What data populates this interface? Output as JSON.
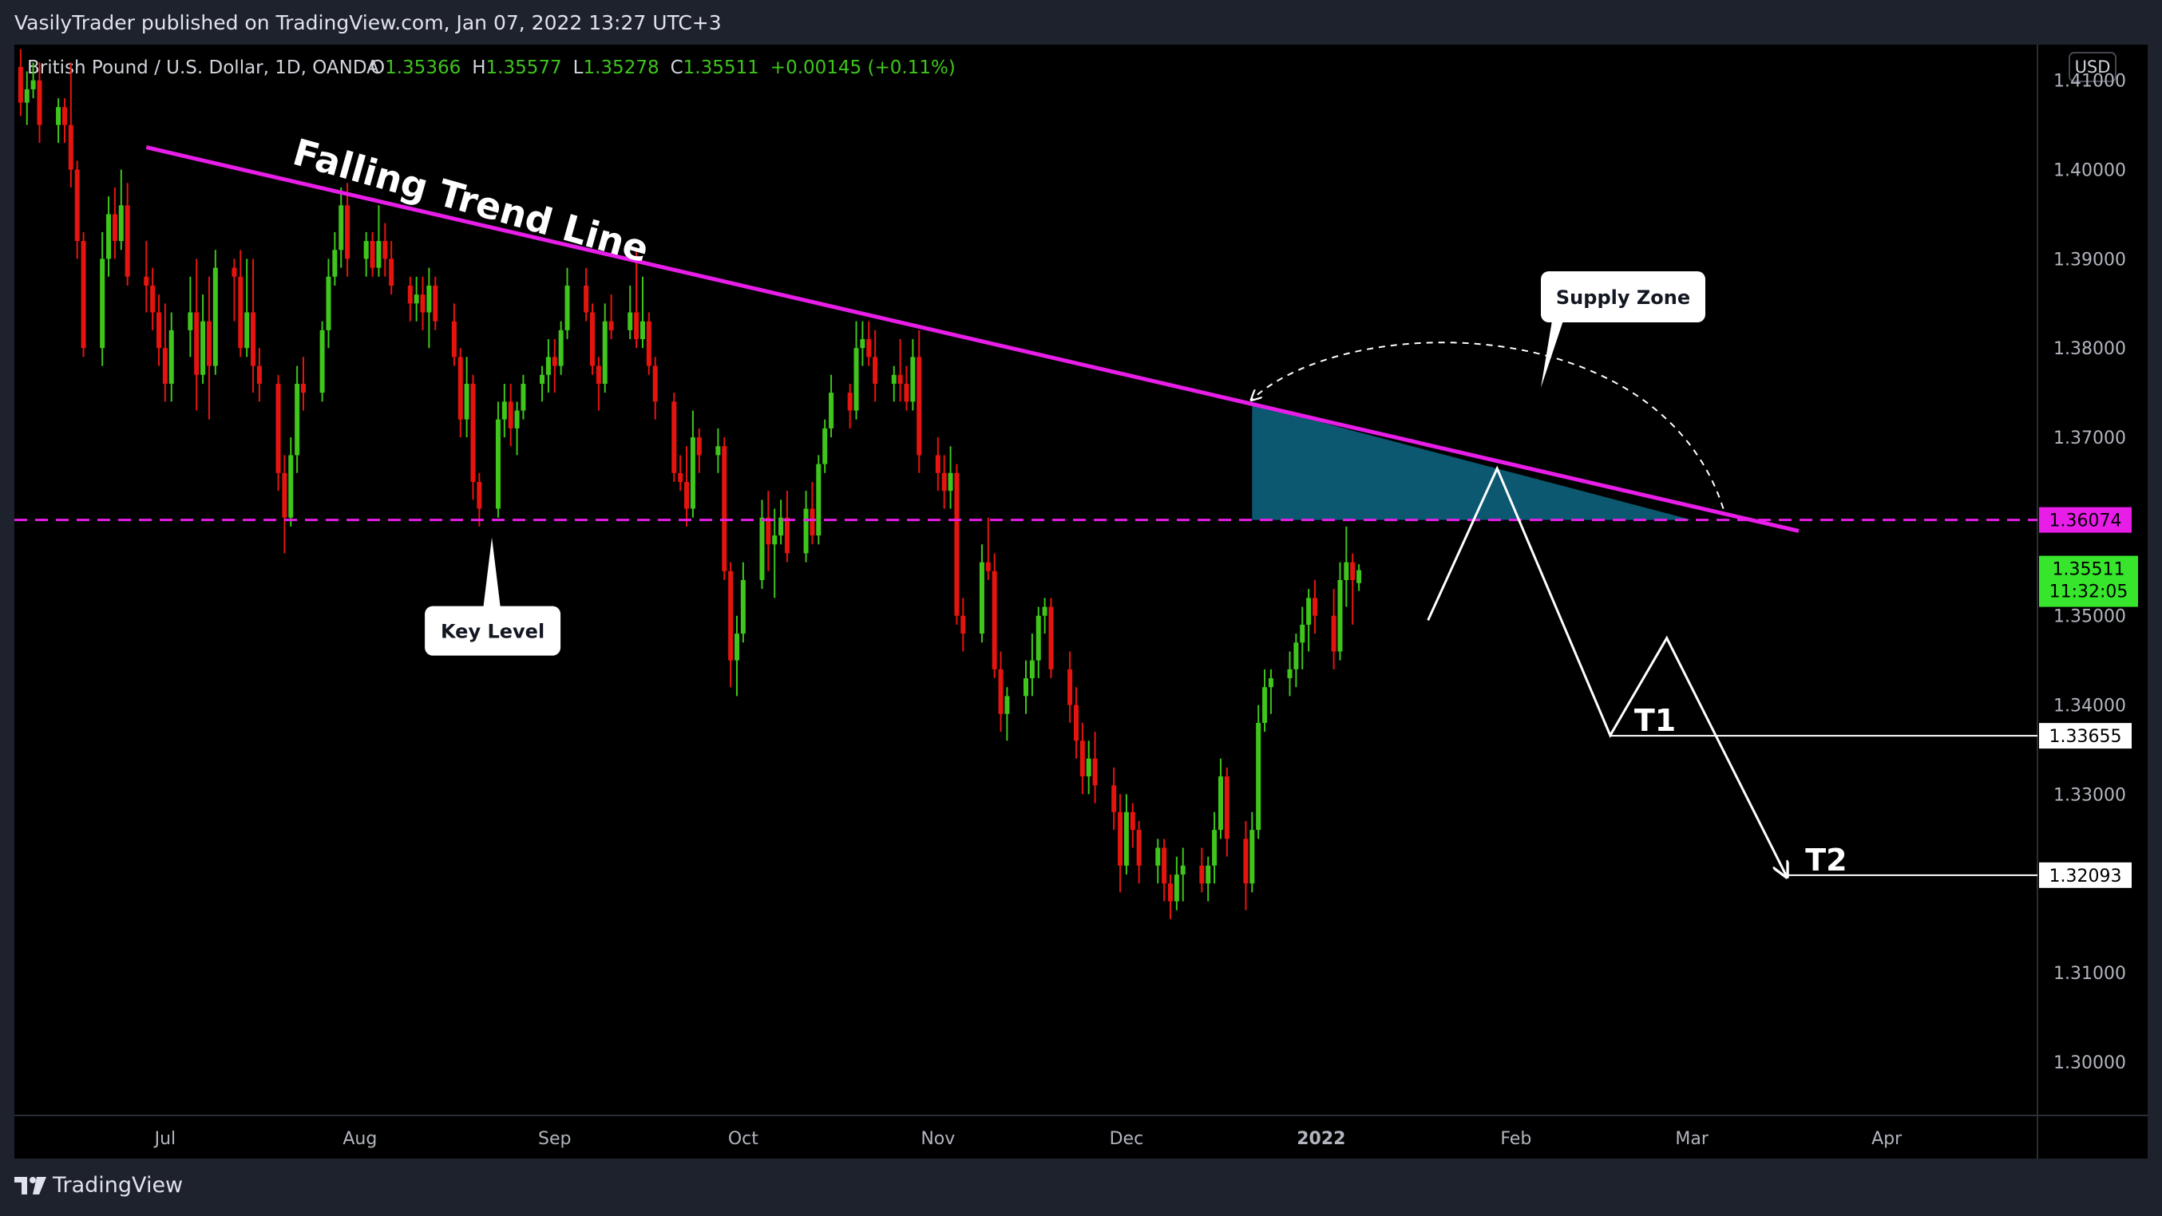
{
  "header": {
    "publisher_text": "VasilyTrader published on TradingView.com, Jan 07, 2022 13:27 UTC+3"
  },
  "legend": {
    "symbol": "British Pound / U.S. Dollar, 1D, OANDA",
    "open_label": "O",
    "open": "1.35366",
    "high_label": "H",
    "high": "1.35577",
    "low_label": "L",
    "low": "1.35278",
    "close_label": "C",
    "close": "1.35511",
    "change": "+0.00145 (+0.11%)"
  },
  "currency_label": "USD",
  "branding": {
    "logo_text": "TradingView"
  },
  "colors": {
    "up": "#3fc51c",
    "down": "#e6140f",
    "trend": "#e81ee8",
    "zone": "#0c5870",
    "price_tag": "#37e62c"
  },
  "chart_data": {
    "type": "candlestick",
    "title": "",
    "ylim": [
      1.294,
      1.414
    ],
    "y_ticks": [
      "1.41000",
      "1.40000",
      "1.39000",
      "1.38000",
      "1.37000",
      "1.35000",
      "1.34000",
      "1.33000",
      "1.31000",
      "1.30000"
    ],
    "x_ticks": [
      "Jul",
      "Aug",
      "Sep",
      "Oct",
      "Nov",
      "Dec",
      "2022",
      "Feb",
      "Mar",
      "Apr"
    ],
    "x_tick_dates": [
      "2021-07-01",
      "2021-08-01",
      "2021-09-01",
      "2021-10-01",
      "2021-11-01",
      "2021-12-01",
      "2022-01-01",
      "2022-02-01",
      "2022-03-01",
      "2022-04-01"
    ],
    "xlim": [
      "2021-06-07",
      "2022-04-25"
    ],
    "price_tags": {
      "key_level": "1.36074",
      "last_price": "1.35511",
      "countdown": "11:32:05",
      "t1": "1.33655",
      "t2": "1.32093"
    },
    "key_level_value": 1.36074,
    "last_price_value": 1.35511,
    "t1_value": 1.33655,
    "t2_value": 1.32093,
    "trend_line": {
      "from": [
        "2021-06-28",
        1.4025
      ],
      "to": [
        "2022-03-18",
        1.3595
      ]
    },
    "supply_zone": {
      "from_date": "2021-12-21",
      "to_date": "2022-03-01",
      "bottom": 1.36074
    },
    "projection_path": [
      [
        "2022-01-18",
        1.3495
      ],
      [
        "2022-01-29",
        1.3665
      ],
      [
        "2022-02-16",
        1.3366
      ],
      [
        "2022-02-25",
        1.3475
      ],
      [
        "2022-03-16",
        1.3209
      ]
    ],
    "annotations": {
      "trend_label": "Falling Trend Line",
      "supply_zone_label": "Supply Zone",
      "key_level_label": "Key Level",
      "t1_label": "T1",
      "t2_label": "T2"
    },
    "candles_ohlc_note": "date, open, high, low, close",
    "candles": [
      [
        "2021-06-08",
        1.4115,
        1.4135,
        1.406,
        1.4075
      ],
      [
        "2021-06-09",
        1.4075,
        1.411,
        1.405,
        1.409
      ],
      [
        "2021-06-10",
        1.409,
        1.412,
        1.408,
        1.41
      ],
      [
        "2021-06-11",
        1.41,
        1.412,
        1.403,
        1.405
      ],
      [
        "2021-06-14",
        1.405,
        1.408,
        1.403,
        1.407
      ],
      [
        "2021-06-15",
        1.407,
        1.408,
        1.403,
        1.405
      ],
      [
        "2021-06-16",
        1.405,
        1.412,
        1.398,
        1.4
      ],
      [
        "2021-06-17",
        1.4,
        1.401,
        1.39,
        1.392
      ],
      [
        "2021-06-18",
        1.392,
        1.393,
        1.379,
        1.38
      ],
      [
        "2021-06-21",
        1.38,
        1.393,
        1.378,
        1.39
      ],
      [
        "2021-06-22",
        1.39,
        1.397,
        1.388,
        1.395
      ],
      [
        "2021-06-23",
        1.395,
        1.398,
        1.39,
        1.392
      ],
      [
        "2021-06-24",
        1.392,
        1.4,
        1.391,
        1.396
      ],
      [
        "2021-06-25",
        1.396,
        1.3985,
        1.387,
        1.388
      ],
      [
        "2021-06-28",
        1.388,
        1.392,
        1.384,
        1.387
      ],
      [
        "2021-06-29",
        1.387,
        1.389,
        1.382,
        1.384
      ],
      [
        "2021-06-30",
        1.384,
        1.386,
        1.378,
        1.38
      ],
      [
        "2021-07-01",
        1.38,
        1.385,
        1.374,
        1.376
      ],
      [
        "2021-07-02",
        1.376,
        1.384,
        1.374,
        1.382
      ],
      [
        "2021-07-05",
        1.382,
        1.388,
        1.379,
        1.384
      ],
      [
        "2021-07-06",
        1.384,
        1.39,
        1.373,
        1.377
      ],
      [
        "2021-07-07",
        1.377,
        1.386,
        1.376,
        1.383
      ],
      [
        "2021-07-08",
        1.383,
        1.388,
        1.372,
        1.378
      ],
      [
        "2021-07-09",
        1.378,
        1.391,
        1.377,
        1.389
      ],
      [
        "2021-07-12",
        1.389,
        1.39,
        1.383,
        1.388
      ],
      [
        "2021-07-13",
        1.388,
        1.391,
        1.379,
        1.38
      ],
      [
        "2021-07-14",
        1.38,
        1.39,
        1.379,
        1.384
      ],
      [
        "2021-07-15",
        1.384,
        1.39,
        1.375,
        1.378
      ],
      [
        "2021-07-16",
        1.378,
        1.38,
        1.374,
        1.376
      ],
      [
        "2021-07-19",
        1.376,
        1.377,
        1.364,
        1.366
      ],
      [
        "2021-07-20",
        1.366,
        1.368,
        1.357,
        1.361
      ],
      [
        "2021-07-21",
        1.361,
        1.37,
        1.36,
        1.368
      ],
      [
        "2021-07-22",
        1.368,
        1.378,
        1.366,
        1.376
      ],
      [
        "2021-07-23",
        1.376,
        1.379,
        1.373,
        1.375
      ],
      [
        "2021-07-26",
        1.375,
        1.383,
        1.374,
        1.382
      ],
      [
        "2021-07-27",
        1.382,
        1.39,
        1.38,
        1.388
      ],
      [
        "2021-07-28",
        1.388,
        1.393,
        1.387,
        1.391
      ],
      [
        "2021-07-29",
        1.391,
        1.398,
        1.389,
        1.396
      ],
      [
        "2021-07-30",
        1.396,
        1.3985,
        1.388,
        1.39
      ],
      [
        "2021-08-02",
        1.39,
        1.393,
        1.388,
        1.392
      ],
      [
        "2021-08-03",
        1.392,
        1.393,
        1.388,
        1.389
      ],
      [
        "2021-08-04",
        1.389,
        1.396,
        1.388,
        1.392
      ],
      [
        "2021-08-05",
        1.392,
        1.394,
        1.388,
        1.39
      ],
      [
        "2021-08-06",
        1.39,
        1.392,
        1.386,
        1.387
      ],
      [
        "2021-08-09",
        1.387,
        1.388,
        1.383,
        1.385
      ],
      [
        "2021-08-10",
        1.385,
        1.388,
        1.383,
        1.386
      ],
      [
        "2021-08-11",
        1.386,
        1.388,
        1.382,
        1.384
      ],
      [
        "2021-08-12",
        1.384,
        1.389,
        1.38,
        1.387
      ],
      [
        "2021-08-13",
        1.387,
        1.388,
        1.382,
        1.383
      ],
      [
        "2021-08-16",
        1.383,
        1.385,
        1.378,
        1.379
      ],
      [
        "2021-08-17",
        1.379,
        1.38,
        1.37,
        1.372
      ],
      [
        "2021-08-18",
        1.372,
        1.379,
        1.37,
        1.376
      ],
      [
        "2021-08-19",
        1.376,
        1.377,
        1.363,
        1.365
      ],
      [
        "2021-08-20",
        1.365,
        1.366,
        1.36,
        1.362
      ],
      [
        "2021-08-23",
        1.362,
        1.374,
        1.361,
        1.372
      ],
      [
        "2021-08-24",
        1.372,
        1.376,
        1.37,
        1.374
      ],
      [
        "2021-08-25",
        1.374,
        1.376,
        1.369,
        1.371
      ],
      [
        "2021-08-26",
        1.371,
        1.374,
        1.368,
        1.373
      ],
      [
        "2021-08-27",
        1.373,
        1.377,
        1.372,
        1.376
      ],
      [
        "2021-08-30",
        1.376,
        1.378,
        1.374,
        1.377
      ],
      [
        "2021-08-31",
        1.377,
        1.381,
        1.375,
        1.379
      ],
      [
        "2021-09-01",
        1.379,
        1.381,
        1.375,
        1.378
      ],
      [
        "2021-09-02",
        1.378,
        1.383,
        1.377,
        1.382
      ],
      [
        "2021-09-03",
        1.382,
        1.389,
        1.381,
        1.387
      ],
      [
        "2021-09-06",
        1.387,
        1.389,
        1.383,
        1.384
      ],
      [
        "2021-09-07",
        1.384,
        1.385,
        1.377,
        1.378
      ],
      [
        "2021-09-08",
        1.378,
        1.379,
        1.373,
        1.376
      ],
      [
        "2021-09-09",
        1.376,
        1.385,
        1.375,
        1.383
      ],
      [
        "2021-09-10",
        1.383,
        1.386,
        1.381,
        1.382
      ],
      [
        "2021-09-13",
        1.382,
        1.387,
        1.381,
        1.384
      ],
      [
        "2021-09-14",
        1.384,
        1.391,
        1.38,
        1.381
      ],
      [
        "2021-09-15",
        1.381,
        1.388,
        1.38,
        1.383
      ],
      [
        "2021-09-16",
        1.383,
        1.384,
        1.377,
        1.378
      ],
      [
        "2021-09-17",
        1.378,
        1.379,
        1.372,
        1.374
      ],
      [
        "2021-09-20",
        1.374,
        1.375,
        1.365,
        1.366
      ],
      [
        "2021-09-21",
        1.366,
        1.368,
        1.364,
        1.365
      ],
      [
        "2021-09-22",
        1.365,
        1.369,
        1.36,
        1.362
      ],
      [
        "2021-09-23",
        1.362,
        1.373,
        1.361,
        1.37
      ],
      [
        "2021-09-24",
        1.37,
        1.371,
        1.366,
        1.368
      ],
      [
        "2021-09-27",
        1.368,
        1.371,
        1.366,
        1.369
      ],
      [
        "2021-09-28",
        1.369,
        1.37,
        1.354,
        1.355
      ],
      [
        "2021-09-29",
        1.355,
        1.356,
        1.342,
        1.345
      ],
      [
        "2021-09-30",
        1.345,
        1.35,
        1.341,
        1.348
      ],
      [
        "2021-10-01",
        1.348,
        1.356,
        1.347,
        1.354
      ],
      [
        "2021-10-04",
        1.354,
        1.363,
        1.353,
        1.361
      ],
      [
        "2021-10-05",
        1.361,
        1.364,
        1.355,
        1.358
      ],
      [
        "2021-10-06",
        1.358,
        1.362,
        1.352,
        1.359
      ],
      [
        "2021-10-07",
        1.359,
        1.363,
        1.358,
        1.361
      ],
      [
        "2021-10-08",
        1.361,
        1.364,
        1.356,
        1.357
      ],
      [
        "2021-10-11",
        1.357,
        1.364,
        1.356,
        1.362
      ],
      [
        "2021-10-12",
        1.362,
        1.365,
        1.358,
        1.359
      ],
      [
        "2021-10-13",
        1.359,
        1.368,
        1.358,
        1.367
      ],
      [
        "2021-10-14",
        1.367,
        1.372,
        1.366,
        1.371
      ],
      [
        "2021-10-15",
        1.371,
        1.377,
        1.37,
        1.375
      ],
      [
        "2021-10-18",
        1.375,
        1.376,
        1.371,
        1.373
      ],
      [
        "2021-10-19",
        1.373,
        1.383,
        1.372,
        1.38
      ],
      [
        "2021-10-20",
        1.38,
        1.383,
        1.378,
        1.381
      ],
      [
        "2021-10-21",
        1.381,
        1.383,
        1.378,
        1.379
      ],
      [
        "2021-10-22",
        1.379,
        1.382,
        1.374,
        1.376
      ],
      [
        "2021-10-25",
        1.376,
        1.378,
        1.374,
        1.377
      ],
      [
        "2021-10-26",
        1.377,
        1.381,
        1.374,
        1.376
      ],
      [
        "2021-10-27",
        1.376,
        1.378,
        1.373,
        1.374
      ],
      [
        "2021-10-28",
        1.374,
        1.381,
        1.373,
        1.379
      ],
      [
        "2021-10-29",
        1.379,
        1.382,
        1.366,
        1.368
      ],
      [
        "2021-11-01",
        1.368,
        1.37,
        1.364,
        1.366
      ],
      [
        "2021-11-02",
        1.366,
        1.368,
        1.362,
        1.364
      ],
      [
        "2021-11-03",
        1.364,
        1.369,
        1.362,
        1.366
      ],
      [
        "2021-11-04",
        1.366,
        1.367,
        1.349,
        1.35
      ],
      [
        "2021-11-05",
        1.35,
        1.352,
        1.346,
        1.348
      ],
      [
        "2021-11-08",
        1.348,
        1.358,
        1.347,
        1.356
      ],
      [
        "2021-11-09",
        1.356,
        1.361,
        1.354,
        1.355
      ],
      [
        "2021-11-10",
        1.355,
        1.357,
        1.343,
        1.344
      ],
      [
        "2021-11-11",
        1.344,
        1.346,
        1.337,
        1.339
      ],
      [
        "2021-11-12",
        1.339,
        1.342,
        1.336,
        1.341
      ],
      [
        "2021-11-15",
        1.341,
        1.345,
        1.339,
        1.343
      ],
      [
        "2021-11-16",
        1.343,
        1.348,
        1.341,
        1.345
      ],
      [
        "2021-11-17",
        1.345,
        1.351,
        1.343,
        1.35
      ],
      [
        "2021-11-18",
        1.35,
        1.352,
        1.348,
        1.351
      ],
      [
        "2021-11-19",
        1.351,
        1.352,
        1.343,
        1.344
      ],
      [
        "2021-11-22",
        1.344,
        1.346,
        1.338,
        1.34
      ],
      [
        "2021-11-23",
        1.34,
        1.342,
        1.334,
        1.336
      ],
      [
        "2021-11-24",
        1.336,
        1.338,
        1.33,
        1.332
      ],
      [
        "2021-11-25",
        1.332,
        1.336,
        1.33,
        1.334
      ],
      [
        "2021-11-26",
        1.334,
        1.337,
        1.329,
        1.331
      ],
      [
        "2021-11-29",
        1.331,
        1.333,
        1.326,
        1.328
      ],
      [
        "2021-11-30",
        1.328,
        1.33,
        1.319,
        1.322
      ],
      [
        "2021-12-01",
        1.322,
        1.33,
        1.321,
        1.328
      ],
      [
        "2021-12-02",
        1.328,
        1.329,
        1.324,
        1.326
      ],
      [
        "2021-12-03",
        1.326,
        1.327,
        1.32,
        1.322
      ],
      [
        "2021-12-06",
        1.322,
        1.325,
        1.32,
        1.324
      ],
      [
        "2021-12-07",
        1.324,
        1.325,
        1.318,
        1.32
      ],
      [
        "2021-12-08",
        1.32,
        1.321,
        1.316,
        1.318
      ],
      [
        "2021-12-09",
        1.318,
        1.323,
        1.317,
        1.321
      ],
      [
        "2021-12-10",
        1.321,
        1.324,
        1.318,
        1.322
      ],
      [
        "2021-12-13",
        1.322,
        1.324,
        1.319,
        1.32
      ],
      [
        "2021-12-14",
        1.32,
        1.323,
        1.318,
        1.322
      ],
      [
        "2021-12-15",
        1.322,
        1.328,
        1.32,
        1.326
      ],
      [
        "2021-12-16",
        1.326,
        1.334,
        1.325,
        1.332
      ],
      [
        "2021-12-17",
        1.332,
        1.333,
        1.323,
        1.325
      ],
      [
        "2021-12-20",
        1.325,
        1.327,
        1.317,
        1.32
      ],
      [
        "2021-12-21",
        1.32,
        1.328,
        1.319,
        1.326
      ],
      [
        "2021-12-22",
        1.326,
        1.34,
        1.325,
        1.338
      ],
      [
        "2021-12-23",
        1.338,
        1.344,
        1.337,
        1.342
      ],
      [
        "2021-12-24",
        1.342,
        1.344,
        1.339,
        1.343
      ],
      [
        "2021-12-27",
        1.343,
        1.346,
        1.341,
        1.344
      ],
      [
        "2021-12-28",
        1.344,
        1.348,
        1.342,
        1.347
      ],
      [
        "2021-12-29",
        1.347,
        1.351,
        1.344,
        1.349
      ],
      [
        "2021-12-30",
        1.349,
        1.353,
        1.346,
        1.352
      ],
      [
        "2021-12-31",
        1.352,
        1.354,
        1.348,
        1.35
      ],
      [
        "2022-01-03",
        1.35,
        1.353,
        1.344,
        1.346
      ],
      [
        "2022-01-04",
        1.346,
        1.356,
        1.345,
        1.354
      ],
      [
        "2022-01-05",
        1.354,
        1.36,
        1.351,
        1.356
      ],
      [
        "2022-01-06",
        1.356,
        1.357,
        1.349,
        1.354
      ],
      [
        "2022-01-07",
        1.35366,
        1.35577,
        1.35278,
        1.35511
      ]
    ]
  }
}
